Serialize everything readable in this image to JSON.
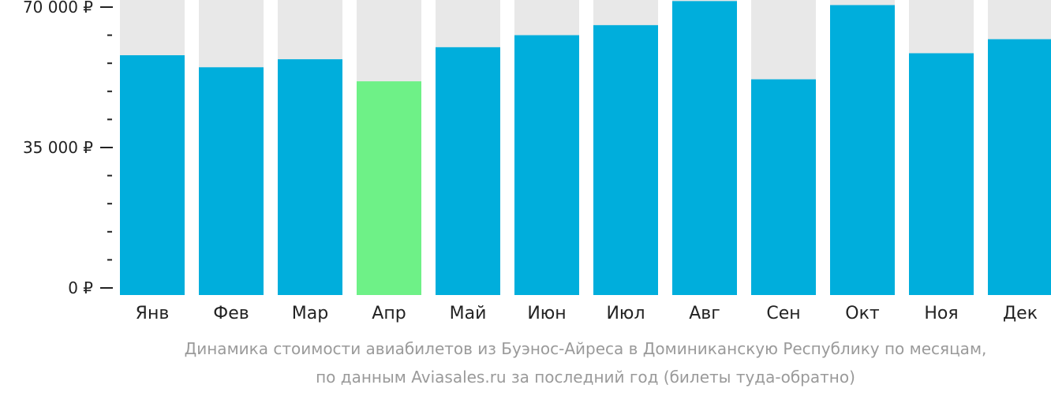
{
  "chart_data": {
    "type": "bar",
    "categories": [
      "Янв",
      "Фев",
      "Мар",
      "Апр",
      "Май",
      "Июн",
      "Июл",
      "Авг",
      "Сен",
      "Окт",
      "Ноя",
      "Дек"
    ],
    "values": [
      58000,
      55000,
      57000,
      51500,
      60000,
      63000,
      65500,
      71500,
      52000,
      70500,
      58500,
      62000
    ],
    "ylim": [
      0,
      72000
    ],
    "yticks": [
      {
        "value": 0,
        "label": "0 ₽"
      },
      {
        "value": 35000,
        "label": "35 000 ₽"
      },
      {
        "value": 70000,
        "label": "70 000 ₽"
      }
    ],
    "minor_tick_step": 7000,
    "highlight_index": 3,
    "colors": {
      "bar": "#00AEDC",
      "highlight": "#6EF187",
      "background_bar": "#E8E8E8",
      "axis": "#222222"
    },
    "caption_line1": "Динамика стоимости авиабилетов из Буэнос-Айреса в Доминиканскую Республику по месяцам,",
    "caption_line2": "по данным Aviasales.ru за последний год (билеты туда-обратно)"
  }
}
